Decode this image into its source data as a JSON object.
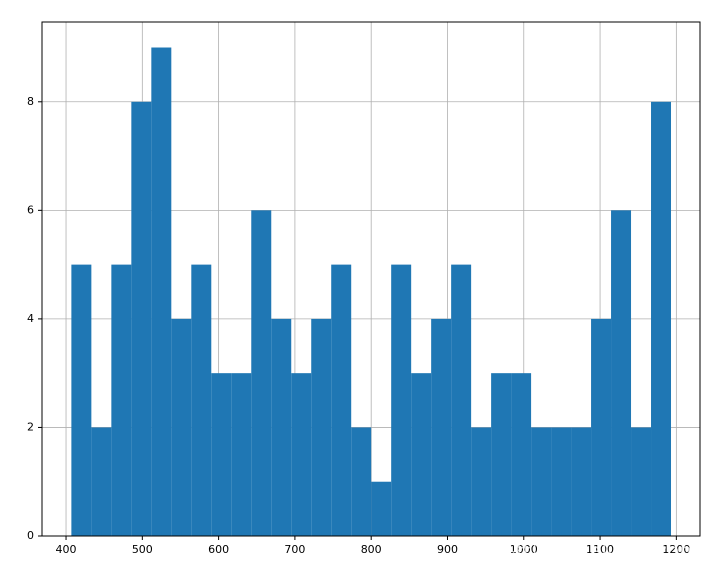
{
  "chart_data": {
    "type": "histogram",
    "bins": [
      407,
      433.2,
      459.4,
      485.6,
      511.8,
      538,
      564.2,
      590.4,
      616.6,
      642.8,
      669,
      695.2,
      721.4,
      747.6,
      773.8,
      800,
      826.2,
      852.4,
      878.6,
      904.8,
      931,
      957.2,
      983.4,
      1009.6,
      1035.8,
      1062,
      1088.2,
      1114.4,
      1140.6,
      1166.8,
      1193
    ],
    "counts": [
      5,
      2,
      5,
      8,
      9,
      4,
      5,
      3,
      3,
      6,
      4,
      3,
      4,
      5,
      2,
      1,
      5,
      3,
      4,
      5,
      2,
      3,
      3,
      2,
      2,
      2,
      4,
      6,
      2,
      8
    ],
    "color": "#1f77b4",
    "xlim": [
      368.5,
      1231
    ],
    "ylim": [
      0,
      9.47
    ],
    "xticks": [
      400,
      500,
      600,
      700,
      800,
      900,
      1000,
      1100,
      1200
    ],
    "yticks": [
      0,
      2,
      4,
      6,
      8
    ],
    "grid": true,
    "watermark": "云栖社区 yq.aliyun.com"
  }
}
